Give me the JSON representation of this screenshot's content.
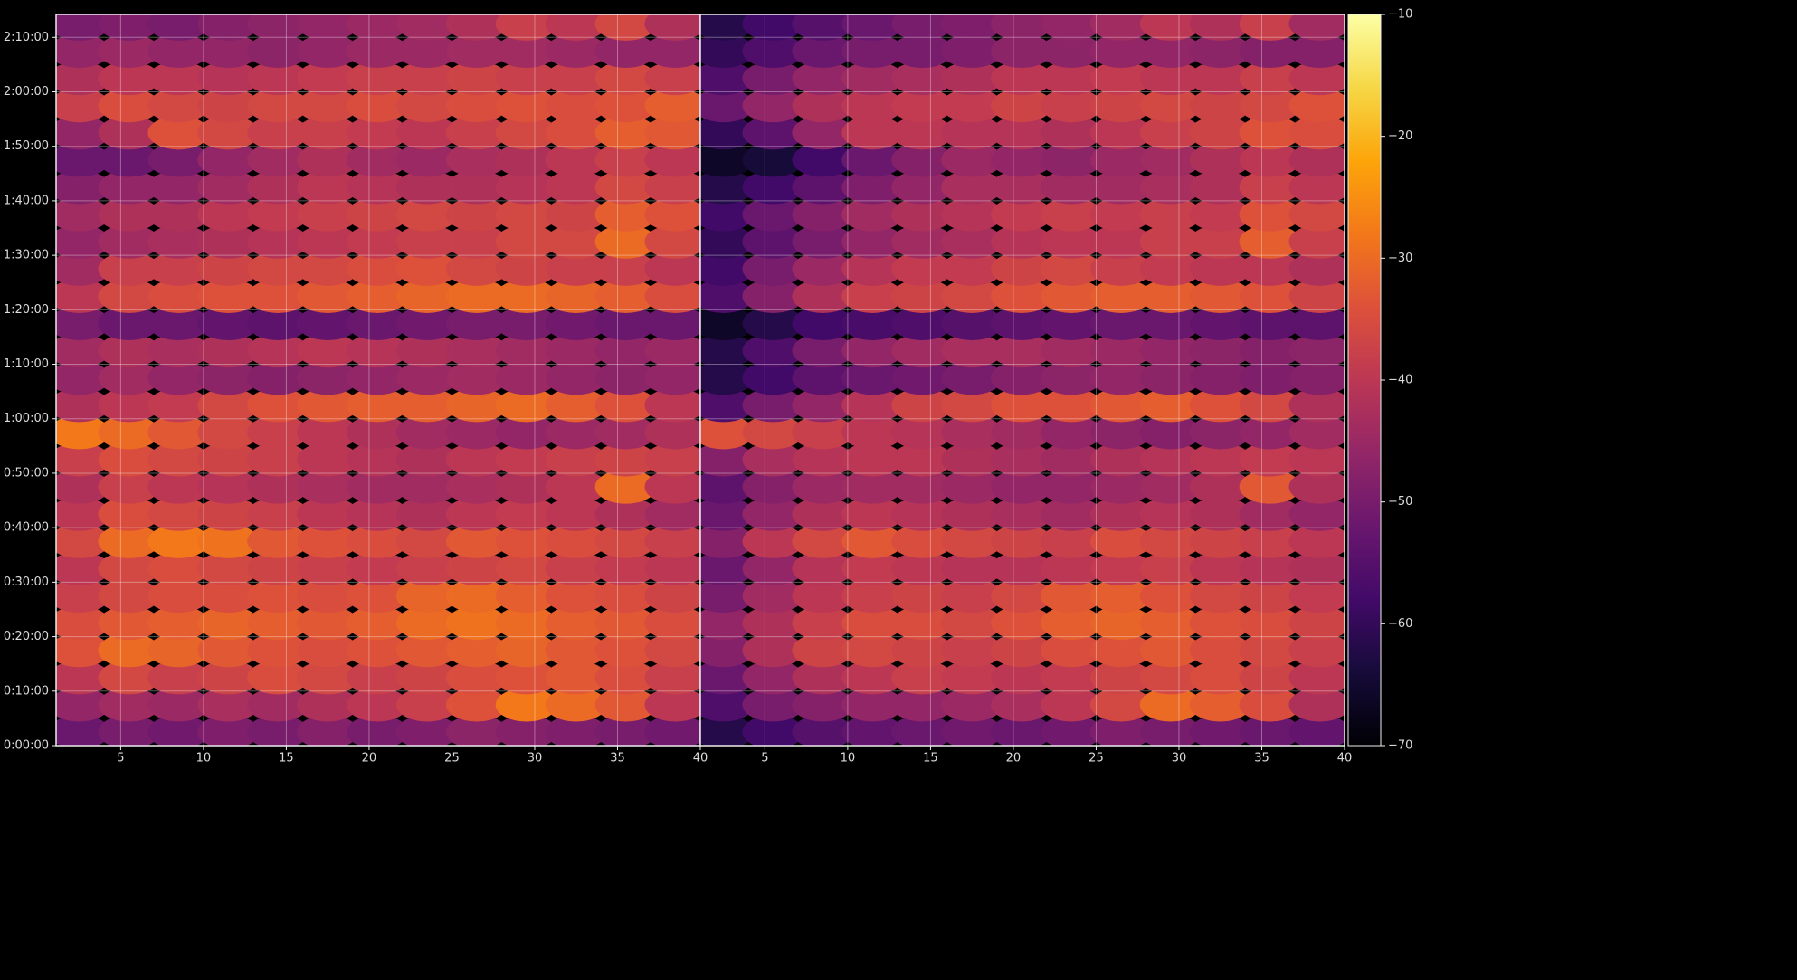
{
  "chart_data": [
    {
      "type": "heatmap",
      "xlim": [
        1.1,
        40
      ],
      "ylim": [
        0,
        8052
      ],
      "grid": true,
      "xticks": [
        5,
        10,
        15,
        20,
        25,
        30,
        35,
        40
      ],
      "yticks": [
        {
          "value": 0,
          "label": "0:00:00"
        },
        {
          "value": 600,
          "label": "0:10:00"
        },
        {
          "value": 1200,
          "label": "0:20:00"
        },
        {
          "value": 1800,
          "label": "0:30:00"
        },
        {
          "value": 2400,
          "label": "0:40:00"
        },
        {
          "value": 3000,
          "label": "0:50:00"
        },
        {
          "value": 3600,
          "label": "1:00:00"
        },
        {
          "value": 4200,
          "label": "1:10:00"
        },
        {
          "value": 4800,
          "label": "1:20:00"
        },
        {
          "value": 5400,
          "label": "1:30:00"
        },
        {
          "value": 6000,
          "label": "1:40:00"
        },
        {
          "value": 6600,
          "label": "1:50:00"
        },
        {
          "value": 7200,
          "label": "2:00:00"
        },
        {
          "value": 7800,
          "label": "2:10:00"
        }
      ],
      "x": [
        2.5,
        5.5,
        8.5,
        11.5,
        14.5,
        17.5,
        20.5,
        23.5,
        26.5,
        29.5,
        32.5,
        35.5,
        38.5
      ],
      "y": [
        150,
        450,
        750,
        1050,
        1350,
        1650,
        1950,
        2250,
        2550,
        2850,
        3150,
        3450,
        3750,
        4050,
        4350,
        4650,
        4950,
        5250,
        5550,
        5850,
        6150,
        6450,
        6750,
        7050,
        7350,
        7650,
        7950
      ],
      "z": [
        [
          -52,
          -50,
          -51,
          -49,
          -50,
          -48,
          -50,
          -49,
          -47,
          -48,
          -49,
          -50,
          -51
        ],
        [
          -46,
          -44,
          -45,
          -43,
          -44,
          -42,
          -40,
          -38,
          -34,
          -28,
          -30,
          -33,
          -40
        ],
        [
          -40,
          -36,
          -38,
          -37,
          -35,
          -36,
          -38,
          -37,
          -35,
          -34,
          -33,
          -35,
          -38
        ],
        [
          -34,
          -30,
          -31,
          -33,
          -34,
          -35,
          -34,
          -33,
          -32,
          -31,
          -33,
          -34,
          -36
        ],
        [
          -35,
          -33,
          -32,
          -31,
          -32,
          -33,
          -32,
          -30,
          -29,
          -30,
          -32,
          -33,
          -35
        ],
        [
          -38,
          -36,
          -35,
          -35,
          -34,
          -35,
          -34,
          -31,
          -30,
          -32,
          -34,
          -35,
          -37
        ],
        [
          -40,
          -36,
          -35,
          -36,
          -37,
          -38,
          -39,
          -38,
          -37,
          -36,
          -38,
          -39,
          -40
        ],
        [
          -36,
          -30,
          -28,
          -29,
          -33,
          -34,
          -35,
          -36,
          -33,
          -34,
          -35,
          -36,
          -38
        ],
        [
          -40,
          -35,
          -36,
          -37,
          -38,
          -40,
          -41,
          -42,
          -40,
          -39,
          -40,
          -42,
          -44
        ],
        [
          -42,
          -38,
          -40,
          -41,
          -42,
          -43,
          -44,
          -44,
          -43,
          -42,
          -40,
          -30,
          -40
        ],
        [
          -38,
          -35,
          -36,
          -37,
          -38,
          -40,
          -41,
          -42,
          -40,
          -39,
          -38,
          -37,
          -38
        ],
        [
          -28,
          -30,
          -33,
          -36,
          -38,
          -40,
          -42,
          -44,
          -45,
          -46,
          -45,
          -44,
          -42
        ],
        [
          -42,
          -40,
          -39,
          -36,
          -34,
          -33,
          -32,
          -32,
          -31,
          -30,
          -32,
          -34,
          -40
        ],
        [
          -46,
          -44,
          -46,
          -47,
          -48,
          -47,
          -46,
          -45,
          -44,
          -45,
          -46,
          -47,
          -46
        ],
        [
          -44,
          -42,
          -43,
          -42,
          -41,
          -40,
          -41,
          -42,
          -43,
          -44,
          -45,
          -46,
          -45
        ],
        [
          -50,
          -52,
          -52,
          -53,
          -54,
          -53,
          -52,
          -51,
          -50,
          -50,
          -51,
          -52,
          -52
        ],
        [
          -40,
          -36,
          -35,
          -34,
          -34,
          -33,
          -32,
          -31,
          -30,
          -30,
          -31,
          -32,
          -35
        ],
        [
          -44,
          -38,
          -38,
          -37,
          -36,
          -36,
          -35,
          -34,
          -36,
          -37,
          -38,
          -38,
          -40
        ],
        [
          -46,
          -44,
          -43,
          -42,
          -41,
          -40,
          -39,
          -38,
          -38,
          -36,
          -36,
          -30,
          -36
        ],
        [
          -44,
          -42,
          -42,
          -40,
          -39,
          -38,
          -37,
          -36,
          -37,
          -36,
          -37,
          -32,
          -34
        ],
        [
          -48,
          -46,
          -46,
          -44,
          -42,
          -40,
          -41,
          -42,
          -42,
          -41,
          -40,
          -36,
          -38
        ],
        [
          -52,
          -52,
          -50,
          -46,
          -44,
          -42,
          -44,
          -45,
          -43,
          -42,
          -40,
          -38,
          -40
        ],
        [
          -46,
          -42,
          -34,
          -36,
          -38,
          -38,
          -39,
          -40,
          -38,
          -36,
          -35,
          -32,
          -33
        ],
        [
          -38,
          -35,
          -36,
          -37,
          -36,
          -36,
          -35,
          -36,
          -35,
          -34,
          -35,
          -34,
          -32
        ],
        [
          -42,
          -40,
          -40,
          -41,
          -40,
          -39,
          -38,
          -38,
          -37,
          -38,
          -38,
          -36,
          -38
        ],
        [
          -46,
          -45,
          -46,
          -46,
          -47,
          -46,
          -45,
          -45,
          -44,
          -44,
          -45,
          -46,
          -46
        ],
        [
          -50,
          -49,
          -50,
          -48,
          -47,
          -46,
          -45,
          -44,
          -42,
          -38,
          -40,
          -36,
          -42
        ]
      ]
    },
    {
      "type": "heatmap",
      "xlim": [
        1.1,
        40
      ],
      "ylim": [
        0,
        8052
      ],
      "grid": true,
      "sharey": true,
      "xticks": [
        5,
        10,
        15,
        20,
        25,
        30,
        35,
        40
      ],
      "x": [
        2.5,
        5.5,
        8.5,
        11.5,
        14.5,
        17.5,
        20.5,
        23.5,
        26.5,
        29.5,
        32.5,
        35.5,
        38.5
      ],
      "y": [
        150,
        450,
        750,
        1050,
        1350,
        1650,
        1950,
        2250,
        2550,
        2850,
        3150,
        3450,
        3750,
        4050,
        4350,
        4650,
        4950,
        5250,
        5550,
        5850,
        6150,
        6450,
        6750,
        7050,
        7350,
        7650,
        7950
      ],
      "z": [
        [
          -62,
          -58,
          -55,
          -53,
          -52,
          -51,
          -52,
          -51,
          -49,
          -50,
          -51,
          -52,
          -53
        ],
        [
          -56,
          -50,
          -48,
          -46,
          -46,
          -45,
          -43,
          -40,
          -36,
          -30,
          -32,
          -35,
          -42
        ],
        [
          -52,
          -46,
          -42,
          -40,
          -38,
          -39,
          -40,
          -39,
          -37,
          -36,
          -35,
          -37,
          -40
        ],
        [
          -48,
          -42,
          -37,
          -36,
          -37,
          -38,
          -37,
          -35,
          -34,
          -33,
          -35,
          -36,
          -38
        ],
        [
          -46,
          -42,
          -38,
          -35,
          -35,
          -36,
          -34,
          -32,
          -31,
          -32,
          -34,
          -35,
          -37
        ],
        [
          -50,
          -44,
          -40,
          -38,
          -37,
          -38,
          -36,
          -33,
          -32,
          -34,
          -36,
          -37,
          -39
        ],
        [
          -52,
          -46,
          -41,
          -39,
          -40,
          -41,
          -41,
          -40,
          -39,
          -38,
          -40,
          -41,
          -42
        ],
        [
          -48,
          -40,
          -36,
          -33,
          -35,
          -36,
          -37,
          -38,
          -35,
          -36,
          -37,
          -38,
          -40
        ],
        [
          -52,
          -46,
          -42,
          -40,
          -41,
          -42,
          -43,
          -44,
          -42,
          -41,
          -42,
          -44,
          -46
        ],
        [
          -54,
          -48,
          -45,
          -44,
          -44,
          -45,
          -46,
          -46,
          -45,
          -44,
          -42,
          -33,
          -42
        ],
        [
          -48,
          -43,
          -41,
          -40,
          -40,
          -42,
          -43,
          -44,
          -42,
          -41,
          -40,
          -39,
          -40
        ],
        [
          -34,
          -36,
          -38,
          -40,
          -41,
          -43,
          -44,
          -46,
          -47,
          -48,
          -47,
          -46,
          -44
        ],
        [
          -56,
          -50,
          -46,
          -41,
          -37,
          -36,
          -34,
          -34,
          -33,
          -32,
          -34,
          -36,
          -42
        ],
        [
          -62,
          -58,
          -54,
          -52,
          -51,
          -50,
          -48,
          -47,
          -46,
          -47,
          -48,
          -49,
          -48
        ],
        [
          -62,
          -56,
          -50,
          -46,
          -44,
          -43,
          -43,
          -44,
          -45,
          -46,
          -47,
          -48,
          -47
        ],
        [
          -66,
          -62,
          -58,
          -57,
          -56,
          -55,
          -54,
          -53,
          -52,
          -52,
          -53,
          -54,
          -54
        ],
        [
          -56,
          -48,
          -42,
          -38,
          -37,
          -36,
          -34,
          -33,
          -32,
          -32,
          -33,
          -34,
          -37
        ],
        [
          -58,
          -50,
          -45,
          -41,
          -39,
          -39,
          -37,
          -36,
          -38,
          -39,
          -40,
          -40,
          -42
        ],
        [
          -60,
          -54,
          -50,
          -46,
          -44,
          -43,
          -41,
          -40,
          -40,
          -38,
          -38,
          -32,
          -38
        ],
        [
          -58,
          -52,
          -48,
          -44,
          -42,
          -41,
          -39,
          -38,
          -39,
          -38,
          -39,
          -34,
          -36
        ],
        [
          -62,
          -58,
          -54,
          -49,
          -46,
          -43,
          -43,
          -44,
          -44,
          -43,
          -42,
          -38,
          -40
        ],
        [
          -66,
          -64,
          -58,
          -52,
          -48,
          -45,
          -46,
          -47,
          -45,
          -44,
          -42,
          -40,
          -42
        ],
        [
          -60,
          -54,
          -46,
          -40,
          -40,
          -41,
          -41,
          -42,
          -40,
          -38,
          -37,
          -34,
          -35
        ],
        [
          -52,
          -46,
          -42,
          -40,
          -39,
          -39,
          -37,
          -38,
          -37,
          -36,
          -37,
          -36,
          -34
        ],
        [
          -56,
          -50,
          -46,
          -44,
          -43,
          -42,
          -40,
          -40,
          -39,
          -40,
          -40,
          -38,
          -40
        ],
        [
          -60,
          -56,
          -52,
          -50,
          -50,
          -49,
          -47,
          -47,
          -46,
          -46,
          -47,
          -48,
          -48
        ],
        [
          -62,
          -58,
          -55,
          -52,
          -50,
          -49,
          -47,
          -46,
          -44,
          -40,
          -42,
          -38,
          -44
        ]
      ],
      "colorbar": {
        "colormap": "inferno",
        "lim": [
          -70,
          -10
        ],
        "ticks": [
          {
            "value": -70,
            "label": "−70"
          },
          {
            "value": -60,
            "label": "−60"
          },
          {
            "value": -50,
            "label": "−50"
          },
          {
            "value": -40,
            "label": "−40"
          },
          {
            "value": -30,
            "label": "−30"
          },
          {
            "value": -20,
            "label": "−20"
          },
          {
            "value": -10,
            "label": "−10"
          }
        ]
      }
    }
  ]
}
